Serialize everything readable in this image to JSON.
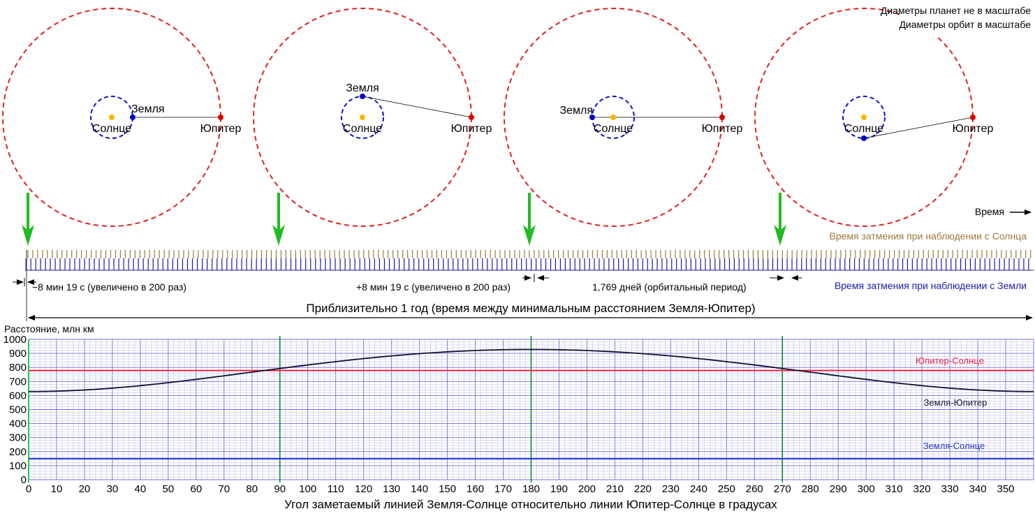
{
  "notes": {
    "diameters_planets": "Диаметры планет не в масштабе",
    "diameters_orbits": "Диаметры орбит в масштабе"
  },
  "orbit_labels": {
    "sun": "Солнце",
    "earth": "Земля",
    "jupiter": "Юпитер"
  },
  "orbit_configurations": [
    {
      "earth_angle_deg": 0
    },
    {
      "earth_angle_deg": 90
    },
    {
      "earth_angle_deg": 180
    },
    {
      "earth_angle_deg": 270
    }
  ],
  "colors": {
    "sun": "#f5b800",
    "earth": "#0000cc",
    "jupiter": "#dd0000",
    "arrow": "#22bb22",
    "sun_ticks": "#9b7a3c",
    "earth_ticks": "#1a1aaa",
    "grid_minor": "#b8b8f0",
    "grid_major": "#6f6fe0",
    "green_line": "#0a8a2a",
    "red_line": "#ee2244",
    "blue_line": "#2233cc",
    "curve": "#111133"
  },
  "timeline": {
    "time_label": "Время",
    "sun_observation": "Время затмения при наблюдении с Солнца",
    "earth_observation": "Время затмения при наблюдении с Земли",
    "delay_minus": "−8 мин 19 с (увеличено в 200 раз)",
    "delay_plus": "+8 мин 19 с (увеличено в 200 раз)",
    "period": "1,769 дней (орбитальный период)",
    "year": "Приблизительно 1 год (время между минимальным расстоянием Земля-Юпитер)"
  },
  "chart_data": {
    "type": "line",
    "title": "",
    "ylabel": "Расстояние, млн км",
    "xlabel": "Угол заметаемый линией Земля-Солнце относительно линии Юпитер-Солнце в градусах",
    "xlim": [
      0,
      360
    ],
    "ylim": [
      0,
      1000
    ],
    "xticks": [
      0,
      10,
      20,
      30,
      40,
      50,
      60,
      70,
      80,
      90,
      100,
      110,
      120,
      130,
      140,
      150,
      160,
      170,
      180,
      190,
      200,
      210,
      220,
      230,
      240,
      250,
      260,
      270,
      280,
      290,
      300,
      310,
      320,
      330,
      340,
      350
    ],
    "yticks": [
      0,
      100,
      200,
      300,
      400,
      500,
      600,
      700,
      800,
      900,
      1000
    ],
    "grid": true,
    "vertical_markers": [
      90,
      180,
      270
    ],
    "series": [
      {
        "name": "Юпитер-Солнце",
        "color": "#ee2244",
        "constant": 778
      },
      {
        "name": "Земля-Юпитер",
        "color": "#111133",
        "jupiter_sun": 778,
        "earth_sun": 150
      },
      {
        "name": "Земля-Солнце",
        "color": "#2233cc",
        "constant": 150
      }
    ]
  }
}
